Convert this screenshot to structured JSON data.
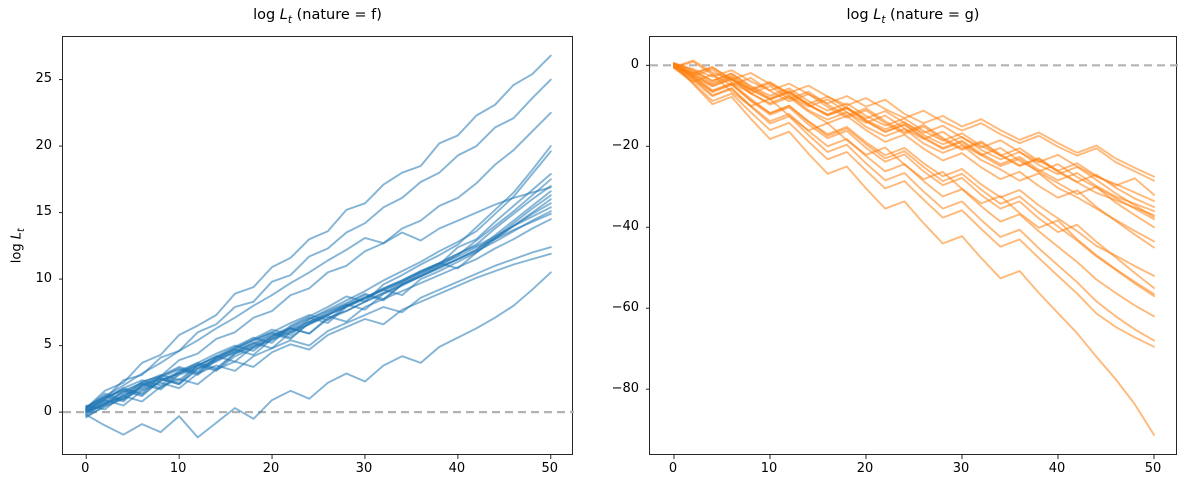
{
  "figure": {
    "background": "#ffffff",
    "spine_color": "#262626",
    "text_color": "#000000"
  },
  "chart_data": [
    {
      "type": "line",
      "panel": "left",
      "title": {
        "prefix": "log ",
        "var": "L",
        "sub": "t",
        "suffix": " (nature = f)"
      },
      "ylabel": {
        "prefix": "log ",
        "var": "L",
        "sub": "t"
      },
      "color": "#1f77b4",
      "alpha": 0.55,
      "line_width": 1.9,
      "xlim": [
        -2.5,
        52.5
      ],
      "ylim": [
        -3.3,
        28.2
      ],
      "xticks": [
        0,
        10,
        20,
        30,
        40,
        50
      ],
      "yticks": [
        0,
        5,
        10,
        15,
        20,
        25
      ],
      "zero_line": {
        "y": 0,
        "color": "#b3b3b3",
        "dash": "8 5",
        "width": 2.2
      },
      "x_start": 0,
      "x_step": 2,
      "series": [
        [
          0.3,
          1.6,
          2.2,
          3.7,
          4.3,
          5.8,
          6.5,
          7.3,
          8.9,
          9.4,
          10.9,
          11.6,
          13.0,
          13.6,
          15.2,
          15.7,
          17.1,
          18.0,
          18.5,
          20.2,
          20.8,
          22.3,
          23.1,
          24.6,
          25.4,
          26.8
        ],
        [
          0.1,
          1.0,
          2.4,
          2.8,
          4.1,
          4.6,
          6.0,
          6.6,
          7.9,
          8.3,
          9.8,
          10.3,
          11.7,
          12.3,
          13.5,
          14.2,
          15.4,
          16.1,
          17.3,
          18.0,
          19.3,
          20.0,
          21.4,
          22.1,
          23.6,
          25.0
        ],
        [
          -0.2,
          0.7,
          1.1,
          2.3,
          2.7,
          3.9,
          4.4,
          5.5,
          6.0,
          7.1,
          7.6,
          8.8,
          9.3,
          10.5,
          11.0,
          12.1,
          12.7,
          13.8,
          14.4,
          15.5,
          16.1,
          17.2,
          18.6,
          19.7,
          21.1,
          22.5
        ],
        [
          0.4,
          1.2,
          0.8,
          2.0,
          2.6,
          2.2,
          3.5,
          4.2,
          4.9,
          5.6,
          5.2,
          6.5,
          7.2,
          7.9,
          8.7,
          8.3,
          9.6,
          10.3,
          11.1,
          11.8,
          12.6,
          13.9,
          15.2,
          16.5,
          18.2,
          20.0
        ],
        [
          0.0,
          0.9,
          1.8,
          1.4,
          2.7,
          3.3,
          2.9,
          4.1,
          4.8,
          5.5,
          6.2,
          5.8,
          7.0,
          7.7,
          8.4,
          9.1,
          9.9,
          10.6,
          11.3,
          12.1,
          12.8,
          13.6,
          14.9,
          16.2,
          17.9,
          19.6
        ],
        [
          0.2,
          1.1,
          1.6,
          1.2,
          2.4,
          2.9,
          3.6,
          3.2,
          4.4,
          4.9,
          5.6,
          6.3,
          5.9,
          7.1,
          7.6,
          8.3,
          9.0,
          9.7,
          10.4,
          11.1,
          12.4,
          13.0,
          14.3,
          15.5,
          16.7,
          17.9
        ],
        [
          -0.4,
          0.5,
          1.0,
          2.1,
          1.7,
          2.8,
          3.3,
          4.0,
          4.7,
          4.3,
          5.5,
          6.1,
          6.8,
          7.4,
          8.1,
          8.8,
          8.4,
          9.6,
          10.3,
          11.0,
          11.8,
          12.9,
          14.0,
          15.1,
          16.3,
          17.5
        ],
        [
          0.5,
          0.2,
          1.3,
          1.8,
          2.5,
          2.1,
          3.2,
          3.8,
          4.5,
          5.1,
          5.8,
          6.4,
          7.1,
          6.7,
          7.9,
          8.5,
          9.2,
          9.8,
          10.5,
          11.2,
          11.9,
          12.6,
          13.8,
          14.9,
          16.0,
          17.0
        ],
        [
          0.3,
          1.2,
          2.0,
          2.9,
          3.7,
          4.6,
          5.4,
          6.3,
          7.1,
          8.0,
          8.8,
          9.7,
          10.5,
          11.4,
          12.2,
          13.1,
          12.7,
          13.5,
          12.9,
          13.8,
          14.4,
          15.0,
          15.6,
          16.1,
          16.5,
          16.9
        ],
        [
          0.1,
          0.8,
          1.5,
          2.2,
          1.8,
          2.9,
          3.5,
          4.2,
          3.8,
          4.9,
          5.5,
          6.2,
          6.8,
          7.5,
          8.1,
          7.7,
          8.9,
          9.5,
          10.2,
          10.8,
          11.5,
          12.2,
          13.3,
          14.4,
          15.5,
          16.6
        ],
        [
          0.3,
          1.4,
          0.9,
          2.0,
          2.6,
          3.2,
          2.8,
          3.9,
          4.5,
          5.2,
          4.8,
          6.0,
          6.6,
          7.3,
          7.9,
          8.6,
          9.2,
          8.8,
          10.0,
          10.6,
          11.3,
          12.0,
          13.1,
          14.2,
          15.3,
          16.3
        ],
        [
          -0.1,
          0.6,
          1.2,
          1.9,
          2.5,
          2.1,
          3.3,
          3.9,
          4.6,
          5.2,
          5.9,
          5.5,
          6.7,
          7.3,
          8.0,
          8.6,
          9.3,
          9.9,
          10.6,
          11.2,
          10.8,
          12.0,
          13.0,
          14.0,
          15.0,
          16.0
        ],
        [
          0.2,
          1.0,
          1.7,
          1.3,
          2.4,
          3.0,
          3.7,
          3.3,
          4.4,
          5.0,
          5.7,
          6.3,
          5.9,
          7.0,
          7.6,
          8.3,
          8.9,
          9.6,
          10.2,
          10.9,
          11.5,
          12.2,
          13.1,
          14.0,
          14.9,
          15.7
        ],
        [
          0.0,
          0.7,
          1.4,
          2.1,
          2.7,
          3.4,
          3.0,
          4.1,
          4.7,
          5.4,
          6.0,
          6.7,
          7.3,
          6.9,
          8.0,
          8.6,
          9.3,
          9.9,
          10.6,
          11.2,
          11.9,
          12.5,
          13.2,
          14.0,
          14.7,
          15.4
        ],
        [
          0.4,
          1.1,
          1.8,
          2.4,
          2.0,
          3.1,
          3.7,
          4.4,
          5.0,
          4.6,
          5.7,
          6.3,
          7.0,
          7.6,
          8.2,
          8.9,
          8.5,
          9.6,
          10.2,
          10.9,
          11.5,
          12.1,
          12.8,
          13.6,
          14.4,
          15.1
        ],
        [
          0.1,
          0.5,
          1.6,
          2.2,
          2.8,
          2.4,
          3.5,
          4.1,
          4.8,
          5.4,
          6.0,
          5.6,
          6.7,
          7.3,
          8.0,
          8.6,
          9.2,
          9.8,
          10.5,
          11.1,
          11.7,
          12.4,
          13.0,
          13.7,
          14.3,
          14.9
        ],
        [
          -0.3,
          0.4,
          1.0,
          1.7,
          2.3,
          2.9,
          3.5,
          3.1,
          4.2,
          4.8,
          5.4,
          6.0,
          6.6,
          7.2,
          6.8,
          7.9,
          8.5,
          9.1,
          9.7,
          10.3,
          10.9,
          11.5,
          12.3,
          13.0,
          13.8,
          14.5
        ],
        [
          0.2,
          0.9,
          0.5,
          1.6,
          2.2,
          1.8,
          2.9,
          3.5,
          3.1,
          4.2,
          4.8,
          5.4,
          5.0,
          6.1,
          6.7,
          7.3,
          7.9,
          7.5,
          8.6,
          9.2,
          9.8,
          10.4,
          11.0,
          11.5,
          12.0,
          12.4
        ],
        [
          0.0,
          0.6,
          1.2,
          0.8,
          1.9,
          2.5,
          2.1,
          3.2,
          3.8,
          3.4,
          4.5,
          5.1,
          4.7,
          5.8,
          6.4,
          7.0,
          6.6,
          7.7,
          8.3,
          8.9,
          9.5,
          10.1,
          10.6,
          11.1,
          11.5,
          11.9
        ],
        [
          -0.2,
          -1.0,
          -1.7,
          -0.9,
          -1.5,
          -0.3,
          -1.9,
          -0.8,
          0.3,
          -0.5,
          0.9,
          1.6,
          1.0,
          2.2,
          2.9,
          2.3,
          3.5,
          4.2,
          3.7,
          4.9,
          5.6,
          6.3,
          7.1,
          8.0,
          9.2,
          10.5
        ]
      ]
    },
    {
      "type": "line",
      "panel": "right",
      "title": {
        "prefix": "log ",
        "var": "L",
        "sub": "t",
        "suffix": " (nature = g)"
      },
      "ylabel": null,
      "color": "#ff7f0e",
      "alpha": 0.55,
      "line_width": 1.9,
      "xlim": [
        -2.5,
        52.5
      ],
      "ylim": [
        -96.5,
        7.0
      ],
      "xticks": [
        0,
        10,
        20,
        30,
        40,
        50
      ],
      "yticks": [
        0,
        -20,
        -40,
        -60,
        -80
      ],
      "zero_line": {
        "y": 0,
        "color": "#b3b3b3",
        "dash": "8 5",
        "width": 2.2
      },
      "x_start": 0,
      "x_step": 2,
      "series": [
        [
          0.3,
          -0.9,
          -2.8,
          -1.2,
          -4.0,
          -6.2,
          -4.5,
          -7.1,
          -9.4,
          -7.6,
          -10.2,
          -8.5,
          -12.0,
          -14.3,
          -12.5,
          -15.1,
          -13.3,
          -16.0,
          -18.4,
          -16.6,
          -19.2,
          -21.6,
          -19.8,
          -23.0,
          -25.3,
          -27.5
        ],
        [
          -0.4,
          1.2,
          -1.8,
          -3.5,
          -1.9,
          -4.6,
          -6.8,
          -5.0,
          -7.7,
          -9.9,
          -8.1,
          -10.8,
          -13.0,
          -11.2,
          -13.9,
          -16.1,
          -14.3,
          -17.0,
          -19.2,
          -17.4,
          -20.1,
          -22.3,
          -20.5,
          -23.9,
          -26.2,
          -28.5
        ],
        [
          0.5,
          -1.4,
          -3.8,
          -2.0,
          -5.1,
          -7.5,
          -5.7,
          -8.8,
          -11.2,
          -9.4,
          -12.5,
          -14.9,
          -13.1,
          -16.2,
          -18.6,
          -16.8,
          -19.9,
          -22.3,
          -20.5,
          -23.6,
          -26.0,
          -24.2,
          -27.3,
          -29.7,
          -27.9,
          -32.0
        ],
        [
          0.1,
          -2.1,
          -0.5,
          -3.4,
          -5.9,
          -4.1,
          -7.0,
          -9.5,
          -7.7,
          -10.6,
          -13.1,
          -11.3,
          -14.2,
          -16.7,
          -14.9,
          -17.8,
          -20.3,
          -18.5,
          -21.4,
          -23.9,
          -22.1,
          -25.0,
          -27.5,
          -29.3,
          -31.4,
          -33.5
        ],
        [
          -0.2,
          -2.6,
          -1.0,
          -4.2,
          -6.9,
          -5.1,
          -8.3,
          -6.5,
          -9.7,
          -12.4,
          -10.6,
          -13.8,
          -16.5,
          -14.7,
          -17.9,
          -20.6,
          -18.8,
          -22.0,
          -24.7,
          -22.9,
          -26.1,
          -28.8,
          -27.0,
          -30.2,
          -32.9,
          -35.0
        ],
        [
          0.4,
          -1.8,
          -4.4,
          -2.6,
          -5.8,
          -8.4,
          -6.6,
          -9.8,
          -12.4,
          -10.6,
          -13.8,
          -16.4,
          -14.6,
          -17.8,
          -20.4,
          -18.6,
          -21.8,
          -24.4,
          -22.6,
          -25.8,
          -28.4,
          -26.6,
          -29.8,
          -32.4,
          -34.2,
          -36.0
        ],
        [
          -0.6,
          0.9,
          -2.3,
          -4.9,
          -3.1,
          -6.3,
          -8.9,
          -7.1,
          -10.3,
          -12.9,
          -11.1,
          -14.3,
          -16.9,
          -15.1,
          -18.3,
          -20.9,
          -19.1,
          -22.3,
          -24.9,
          -23.1,
          -26.3,
          -28.9,
          -31.5,
          -33.3,
          -35.2,
          -37.0
        ],
        [
          0.2,
          -2.4,
          -4.7,
          -2.9,
          -6.1,
          -8.4,
          -6.6,
          -9.8,
          -12.1,
          -10.3,
          -13.5,
          -15.8,
          -14.0,
          -17.2,
          -19.5,
          -17.7,
          -20.9,
          -23.2,
          -21.4,
          -24.6,
          -26.9,
          -25.1,
          -28.3,
          -31.6,
          -34.6,
          -37.5
        ],
        [
          -0.3,
          -1.9,
          -0.4,
          -3.6,
          -6.2,
          -4.4,
          -7.6,
          -10.2,
          -8.4,
          -11.6,
          -14.2,
          -12.4,
          -15.6,
          -18.2,
          -16.4,
          -19.6,
          -22.2,
          -20.4,
          -23.6,
          -26.2,
          -24.4,
          -27.6,
          -30.2,
          -32.8,
          -35.4,
          -38.0
        ],
        [
          0.6,
          -1.2,
          -3.9,
          -2.1,
          -5.4,
          -8.1,
          -6.3,
          -9.6,
          -12.3,
          -10.5,
          -13.8,
          -16.5,
          -14.7,
          -18.0,
          -20.7,
          -18.9,
          -22.2,
          -24.9,
          -23.1,
          -26.4,
          -29.1,
          -31.8,
          -30.0,
          -33.9,
          -37.0,
          -40.0
        ],
        [
          -0.1,
          -2.9,
          -5.2,
          -3.4,
          -7.0,
          -9.3,
          -7.5,
          -11.1,
          -13.4,
          -11.6,
          -15.2,
          -17.5,
          -15.7,
          -19.3,
          -21.6,
          -19.8,
          -23.4,
          -25.7,
          -28.5,
          -26.7,
          -30.3,
          -32.6,
          -35.4,
          -38.2,
          -40.9,
          -43.5
        ],
        [
          0.3,
          -2.2,
          -5.1,
          -3.3,
          -6.8,
          -9.7,
          -7.9,
          -11.4,
          -14.3,
          -12.5,
          -16.0,
          -18.9,
          -17.1,
          -20.6,
          -23.5,
          -21.7,
          -25.2,
          -28.1,
          -26.3,
          -29.8,
          -32.7,
          -30.9,
          -35.0,
          -38.4,
          -41.8,
          -45.0
        ],
        [
          -0.5,
          -3.4,
          -6.6,
          -4.8,
          -8.6,
          -11.8,
          -10.0,
          -13.8,
          -17.0,
          -15.2,
          -19.0,
          -22.2,
          -20.4,
          -24.2,
          -27.4,
          -25.6,
          -29.4,
          -32.6,
          -30.8,
          -34.6,
          -37.8,
          -41.0,
          -44.6,
          -47.0,
          -49.6,
          -52.0
        ],
        [
          0.2,
          -3.0,
          -6.4,
          -4.6,
          -8.8,
          -12.2,
          -10.4,
          -14.6,
          -18.0,
          -16.2,
          -20.4,
          -23.8,
          -22.0,
          -26.2,
          -29.6,
          -27.8,
          -32.0,
          -35.4,
          -33.6,
          -37.8,
          -41.2,
          -39.4,
          -43.6,
          -47.4,
          -51.3,
          -55.0
        ],
        [
          -0.7,
          -4.1,
          -2.3,
          -6.5,
          -10.1,
          -8.3,
          -12.5,
          -16.1,
          -14.3,
          -18.5,
          -22.1,
          -20.3,
          -24.5,
          -28.1,
          -26.3,
          -30.5,
          -34.1,
          -32.3,
          -36.5,
          -40.1,
          -38.3,
          -43.0,
          -46.9,
          -50.3,
          -53.5,
          -56.5
        ],
        [
          0.1,
          -2.7,
          -6.2,
          -4.4,
          -8.3,
          -11.8,
          -10.0,
          -13.9,
          -17.4,
          -15.6,
          -19.5,
          -23.0,
          -21.2,
          -25.1,
          -28.6,
          -26.8,
          -30.7,
          -34.2,
          -32.4,
          -36.3,
          -39.8,
          -43.3,
          -47.2,
          -50.5,
          -53.9,
          -57.0
        ],
        [
          -0.2,
          -3.8,
          -7.6,
          -5.8,
          -10.0,
          -13.8,
          -12.0,
          -16.2,
          -20.0,
          -18.2,
          -22.4,
          -26.2,
          -24.4,
          -28.6,
          -32.4,
          -30.6,
          -34.8,
          -38.6,
          -36.8,
          -41.0,
          -44.8,
          -48.6,
          -52.9,
          -56.2,
          -59.3,
          -62.0
        ],
        [
          0.4,
          -3.2,
          -7.4,
          -5.6,
          -10.2,
          -14.4,
          -12.6,
          -17.2,
          -21.4,
          -19.6,
          -24.2,
          -28.4,
          -26.6,
          -31.2,
          -35.4,
          -33.6,
          -38.2,
          -42.4,
          -40.6,
          -45.2,
          -49.4,
          -53.6,
          -58.3,
          -62.0,
          -65.2,
          -68.0
        ],
        [
          -0.4,
          -4.4,
          -8.8,
          -7.0,
          -11.6,
          -16.0,
          -14.2,
          -18.8,
          -23.2,
          -21.4,
          -26.0,
          -30.4,
          -28.6,
          -33.2,
          -37.6,
          -35.8,
          -40.4,
          -44.8,
          -43.0,
          -47.6,
          -52.0,
          -56.4,
          -61.3,
          -64.6,
          -67.2,
          -69.5
        ],
        [
          0.2,
          -4.6,
          -9.6,
          -7.8,
          -13.2,
          -18.2,
          -16.4,
          -21.8,
          -26.8,
          -25.0,
          -30.4,
          -35.4,
          -33.6,
          -39.0,
          -44.0,
          -42.2,
          -47.6,
          -52.6,
          -50.8,
          -56.2,
          -61.2,
          -66.2,
          -72.0,
          -77.5,
          -83.7,
          -91.3
        ]
      ]
    }
  ]
}
